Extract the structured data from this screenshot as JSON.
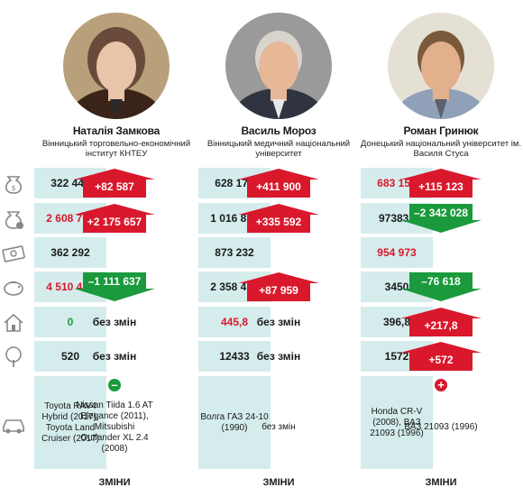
{
  "people": [
    {
      "name": "Наталія Замкова",
      "institution": "Вінницький торговельно-економічний інститут КНТЕУ"
    },
    {
      "name": "Василь Мороз",
      "institution": "Вінницький медичний національний університет"
    },
    {
      "name": "Роман Гринюк",
      "institution": "Донецький національний університет ім. Василя Стуса"
    }
  ],
  "row_icons": [
    "money-bag-icon",
    "savings-bag-icon",
    "banknote-icon",
    "piggy-bank-icon",
    "house-icon",
    "tree-icon",
    "car-icon"
  ],
  "rows": [
    [
      {
        "value": "322 440",
        "red": false,
        "change": "+82 587",
        "dir": "up"
      },
      {
        "value": "628 179",
        "red": false,
        "change": "+411 900",
        "dir": "up"
      },
      {
        "value": "683 156",
        "red": true,
        "change": "+115 123",
        "dir": "up"
      }
    ],
    [
      {
        "value": "2 608 768",
        "red": true,
        "change": "+2 175 657",
        "dir": "up"
      },
      {
        "value": "1 016 857",
        "red": false,
        "change": "+335 592",
        "dir": "up"
      },
      {
        "value": "973831",
        "red": false,
        "change": "–2 342 028",
        "dir": "down"
      }
    ],
    [
      {
        "value": "362 292",
        "red": false,
        "change": "",
        "dir": "none"
      },
      {
        "value": "873 232",
        "red": false,
        "change": "",
        "dir": "none"
      },
      {
        "value": "954 973",
        "red": true,
        "change": "",
        "dir": "none"
      }
    ],
    [
      {
        "value": "4 510 488",
        "red": true,
        "change": "–1 111 637",
        "dir": "down"
      },
      {
        "value": "2 358 477",
        "red": false,
        "change": "+87 959",
        "dir": "up"
      },
      {
        "value": "3450",
        "red": false,
        "change": "–76 618",
        "dir": "down"
      }
    ],
    [
      {
        "value": "0",
        "green": true,
        "change": "без змін",
        "dir": "text"
      },
      {
        "value": "445,8",
        "red": true,
        "change": "без змін",
        "dir": "text"
      },
      {
        "value": "396,8",
        "red": false,
        "change": "+217,8",
        "dir": "up"
      }
    ],
    [
      {
        "value": "520",
        "red": false,
        "change": "без змін",
        "dir": "text"
      },
      {
        "value": "12433",
        "red": false,
        "change": "без змін",
        "dir": "text"
      },
      {
        "value": "1572",
        "red": false,
        "change": "+572",
        "dir": "up"
      }
    ]
  ],
  "cars": [
    {
      "value": "Toyota RAV4 Hybrid (2017), Toyota Land Cruiser (2017)",
      "change": "Nissan Tiida 1.6 AT Elegance (2011), Mitsubishi Outlander XL 2.4 (2008)",
      "sign": "–"
    },
    {
      "value": "Волга ГАЗ 24-10 (1990)",
      "change": "без змін",
      "sign": ""
    },
    {
      "value": "Honda CR-V (2008), ВАЗ 21093 (1996)",
      "change": "ВАЗ 21093 (1996)",
      "sign": "+"
    }
  ],
  "footer_label": "ЗМІНИ",
  "colors": {
    "cell": "#d5ecec",
    "up": "#d9182c",
    "down": "#1a9a3c",
    "icon": "#8a8a8a"
  }
}
